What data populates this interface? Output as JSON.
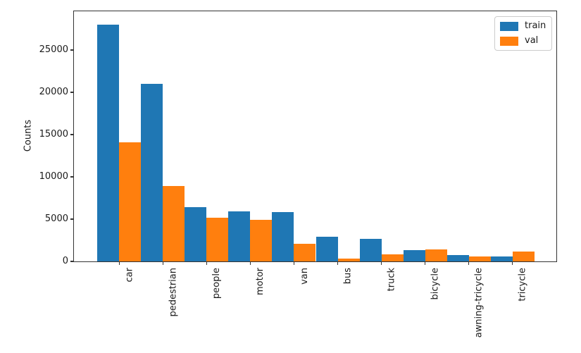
{
  "chart_data": {
    "type": "bar",
    "title": "",
    "xlabel": "",
    "ylabel": "Counts",
    "categories": [
      "car",
      "pedestrian",
      "people",
      "motor",
      "van",
      "bus",
      "truck",
      "bicycle",
      "awning-tricycle",
      "tricycle"
    ],
    "series": [
      {
        "name": "train",
        "color": "#1f77b4",
        "values": [
          28000,
          21000,
          6450,
          5900,
          5850,
          2950,
          2650,
          1300,
          750,
          600
        ]
      },
      {
        "name": "val",
        "color": "#ff7f0e",
        "values": [
          14050,
          8900,
          5150,
          4950,
          2050,
          300,
          850,
          1400,
          570,
          1150
        ]
      }
    ],
    "y_ticks": [
      0,
      5000,
      10000,
      15000,
      20000,
      25000
    ],
    "y_tick_labels": [
      "0",
      "5000",
      "10000",
      "15000",
      "20000",
      "25000"
    ],
    "ylim": [
      0,
      29583
    ],
    "x_tick_rotation": 90,
    "grid": false,
    "legend": {
      "position": "upper right",
      "entries": [
        {
          "label": "train",
          "color": "#1f77b4"
        },
        {
          "label": "val",
          "color": "#ff7f0e"
        }
      ]
    },
    "colors": {
      "spine": "#333333",
      "text": "#1a1a1a",
      "background": "#ffffff"
    }
  }
}
